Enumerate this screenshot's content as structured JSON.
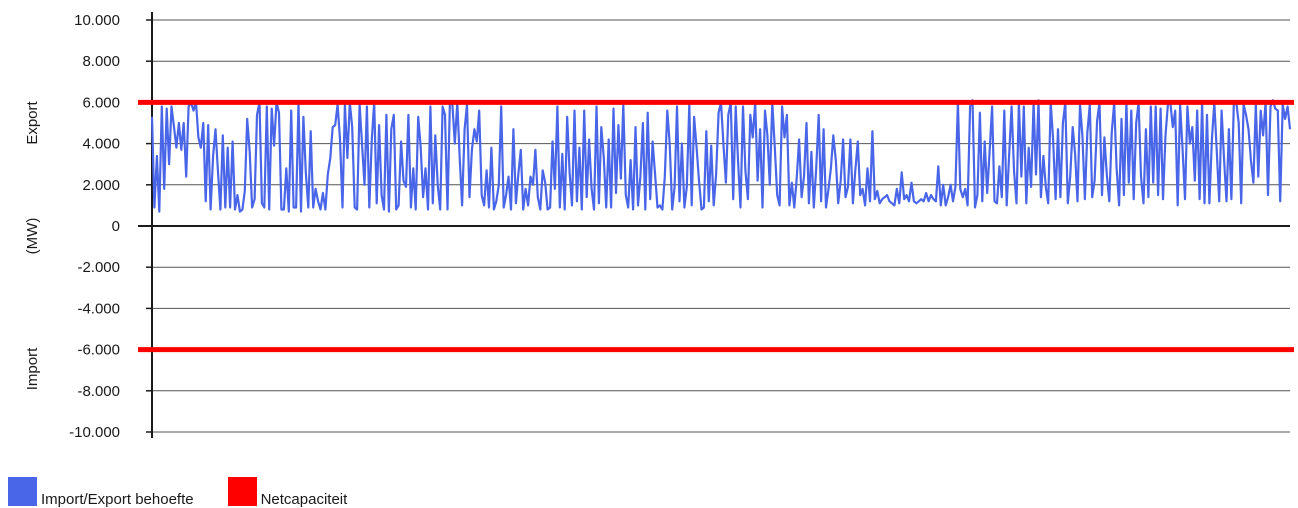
{
  "chart_data": {
    "type": "line",
    "title": "",
    "xlabel": "",
    "ylabel": "(MW)",
    "side_labels": {
      "upper": "Export",
      "lower": "Import"
    },
    "ylim": [
      -10000,
      10000
    ],
    "y_ticks": [
      10000,
      8000,
      6000,
      4000,
      2000,
      0,
      -2000,
      -4000,
      -6000,
      -8000,
      -10000
    ],
    "y_tick_labels": [
      "10.000",
      "8.000",
      "6.000",
      "4.000",
      "2.000",
      "0",
      "-2.000",
      "-4.000",
      "-6.000",
      "-8.000",
      "-10.000"
    ],
    "grid": true,
    "legend_position": "bottom-left",
    "series": [
      {
        "name": "Import/Export behoefte",
        "color": "#4a66e8",
        "values": [
          5300,
          900,
          3400,
          700,
          5800,
          1800,
          5700,
          3000,
          5800,
          4800,
          3800,
          5000,
          3700,
          5000,
          2400,
          5800,
          6000,
          5600,
          6000,
          4300,
          3800,
          5000,
          1200,
          4900,
          800,
          3400,
          4700,
          2700,
          800,
          4400,
          900,
          3800,
          900,
          4100,
          800,
          1500,
          700,
          800,
          1700,
          5200,
          3600,
          900,
          1300,
          5400,
          6000,
          1100,
          900,
          5800,
          800,
          5700,
          3900,
          6000,
          5500,
          800,
          800,
          2800,
          700,
          5600,
          900,
          900,
          6000,
          700,
          5300,
          2600,
          900,
          4600,
          900,
          1800,
          1200,
          800,
          1600,
          800,
          2500,
          3300,
          4800,
          4900,
          5900,
          4200,
          900,
          5900,
          3300,
          6000,
          4800,
          900,
          800,
          5900,
          4000,
          2000,
          5800,
          900,
          4200,
          6000,
          1100,
          4900,
          1500,
          800,
          5400,
          700,
          4700,
          5400,
          800,
          1000,
          4100,
          2200,
          1900,
          5400,
          900,
          2800,
          800,
          5300,
          3900,
          1400,
          2800,
          800,
          5800,
          1100,
          4400,
          2000,
          800,
          5800,
          5400,
          800,
          6000,
          5900,
          4000,
          6000,
          3300,
          1000,
          4700,
          5900,
          1400,
          3700,
          4700,
          4100,
          5600,
          1500,
          1000,
          2700,
          900,
          3800,
          800,
          1200,
          2000,
          5800,
          900,
          1500,
          2400,
          800,
          4700,
          1100,
          2500,
          3700,
          800,
          1800,
          1000,
          2400,
          2000,
          3700,
          1400,
          800,
          2700,
          2100,
          800,
          900,
          4100,
          1800,
          5800,
          900,
          3500,
          800,
          5300,
          2600,
          1000,
          5600,
          1200,
          3800,
          800,
          5600,
          1400,
          4200,
          1800,
          800,
          5800,
          1100,
          4800,
          3300,
          900,
          4200,
          900,
          5700,
          1600,
          4900,
          2300,
          5900,
          1500,
          900,
          3200,
          800,
          4800,
          1000,
          2400,
          5000,
          800,
          5500,
          1300,
          4100,
          2500,
          900,
          1000,
          800,
          2400,
          5600,
          4000,
          800,
          1900,
          5800,
          1200,
          4000,
          900,
          1900,
          5900,
          1000,
          5300,
          3800,
          2200,
          800,
          900,
          4600,
          1200,
          3900,
          1000,
          2500,
          5500,
          6000,
          4000,
          2100,
          5400,
          6000,
          1300,
          5800,
          3100,
          900,
          5800,
          2700,
          1300,
          5400,
          4300,
          6000,
          2200,
          4700,
          900,
          5600,
          4400,
          2000,
          6000,
          3900,
          1500,
          1000,
          5800,
          4300,
          5400,
          1000,
          2100,
          900,
          2300,
          4200,
          1400,
          2400,
          5000,
          1100,
          3600,
          900,
          2800,
          5400,
          1200,
          4700,
          900,
          1800,
          2800,
          4400,
          3200,
          1100,
          2200,
          4200,
          1400,
          1900,
          4200,
          1100,
          2700,
          4100,
          1500,
          1800,
          1000,
          2800,
          1200,
          4600,
          1300,
          1700,
          1100,
          1300,
          1400,
          1500,
          1200,
          1100,
          1000,
          1800,
          1100,
          2600,
          1300,
          1500,
          1200,
          2100,
          1200,
          1100,
          1200,
          1300,
          1200,
          1600,
          1200,
          1500,
          1300,
          1200,
          2900,
          1000,
          2000,
          1000,
          1400,
          2000,
          1200,
          1900,
          6000,
          1800,
          1400,
          1800,
          1000,
          5800,
          6100,
          900,
          1500,
          5500,
          1200,
          4100,
          1600,
          3600,
          5800,
          1200,
          1100,
          2900,
          1400,
          5600,
          1000,
          3500,
          5800,
          2700,
          1100,
          6000,
          2400,
          5800,
          1100,
          3800,
          1900,
          6000,
          2500,
          6100,
          1400,
          3400,
          1900,
          1100,
          6000,
          4200,
          1300,
          4700,
          1400,
          5000,
          6000,
          1100,
          2400,
          4800,
          3500,
          1200,
          5900,
          4400,
          1300,
          4500,
          5900,
          1400,
          2200,
          5100,
          6000,
          1500,
          4300,
          2500,
          1200,
          4500,
          6000,
          2800,
          1000,
          5200,
          1500,
          6000,
          2100,
          5600,
          1300,
          5000,
          6000,
          2400,
          1100,
          4700,
          1400,
          5800,
          2100,
          5800,
          1500,
          5700,
          1300,
          4400,
          5900,
          6000,
          4800,
          5600,
          1000,
          5900,
          3800,
          1300,
          5800,
          4000,
          4800,
          2200,
          5600,
          1300,
          6000,
          1100,
          5400,
          1100,
          4200,
          6000,
          3700,
          1200,
          5600,
          3200,
          1200,
          4700,
          1300,
          5900,
          6000,
          5000,
          1100,
          5900,
          5400,
          4700,
          3200,
          2100,
          5900,
          2400,
          5600,
          4400,
          6000,
          1500,
          5800,
          6100,
          5700,
          5600,
          1200,
          5900,
          5200,
          5800,
          4700
        ]
      },
      {
        "name": "Netcapaciteit",
        "color": "#ff0000",
        "values": [
          6000,
          -6000
        ]
      }
    ]
  }
}
